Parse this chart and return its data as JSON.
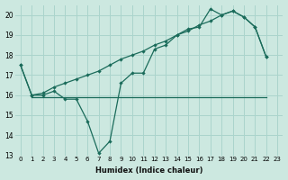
{
  "xlabel": "Humidex (Indice chaleur)",
  "background_color": "#cce8e0",
  "grid_color": "#aad4cc",
  "line_color": "#1a6b5a",
  "xlim": [
    -0.5,
    23.5
  ],
  "ylim": [
    13,
    20.5
  ],
  "yticks": [
    13,
    14,
    15,
    16,
    17,
    18,
    19,
    20
  ],
  "xticks": [
    0,
    1,
    2,
    3,
    4,
    5,
    6,
    7,
    8,
    9,
    10,
    11,
    12,
    13,
    14,
    15,
    16,
    17,
    18,
    19,
    20,
    21,
    22,
    23
  ],
  "curve1_y": [
    17.5,
    16.0,
    16.0,
    16.2,
    15.8,
    15.8,
    14.7,
    13.1,
    13.7,
    16.6,
    17.1,
    17.1,
    18.3,
    18.5,
    19.0,
    19.3,
    19.4,
    20.3,
    20.0,
    20.2,
    19.9,
    19.4,
    17.9,
    null
  ],
  "curve2_y": [
    null,
    15.9,
    15.9,
    15.9,
    15.9,
    15.9,
    15.9,
    15.9,
    15.9,
    15.9,
    15.9,
    15.9,
    15.9,
    15.9,
    15.9,
    15.9,
    15.9,
    15.9,
    15.9,
    15.9,
    15.9,
    15.9,
    15.9,
    null
  ],
  "curve3_y": [
    17.5,
    16.0,
    16.1,
    16.4,
    16.6,
    16.8,
    17.0,
    17.2,
    17.5,
    17.8,
    18.0,
    18.2,
    18.5,
    18.7,
    19.0,
    19.2,
    19.5,
    19.7,
    20.0,
    20.2,
    19.9,
    19.4,
    17.9,
    null
  ]
}
